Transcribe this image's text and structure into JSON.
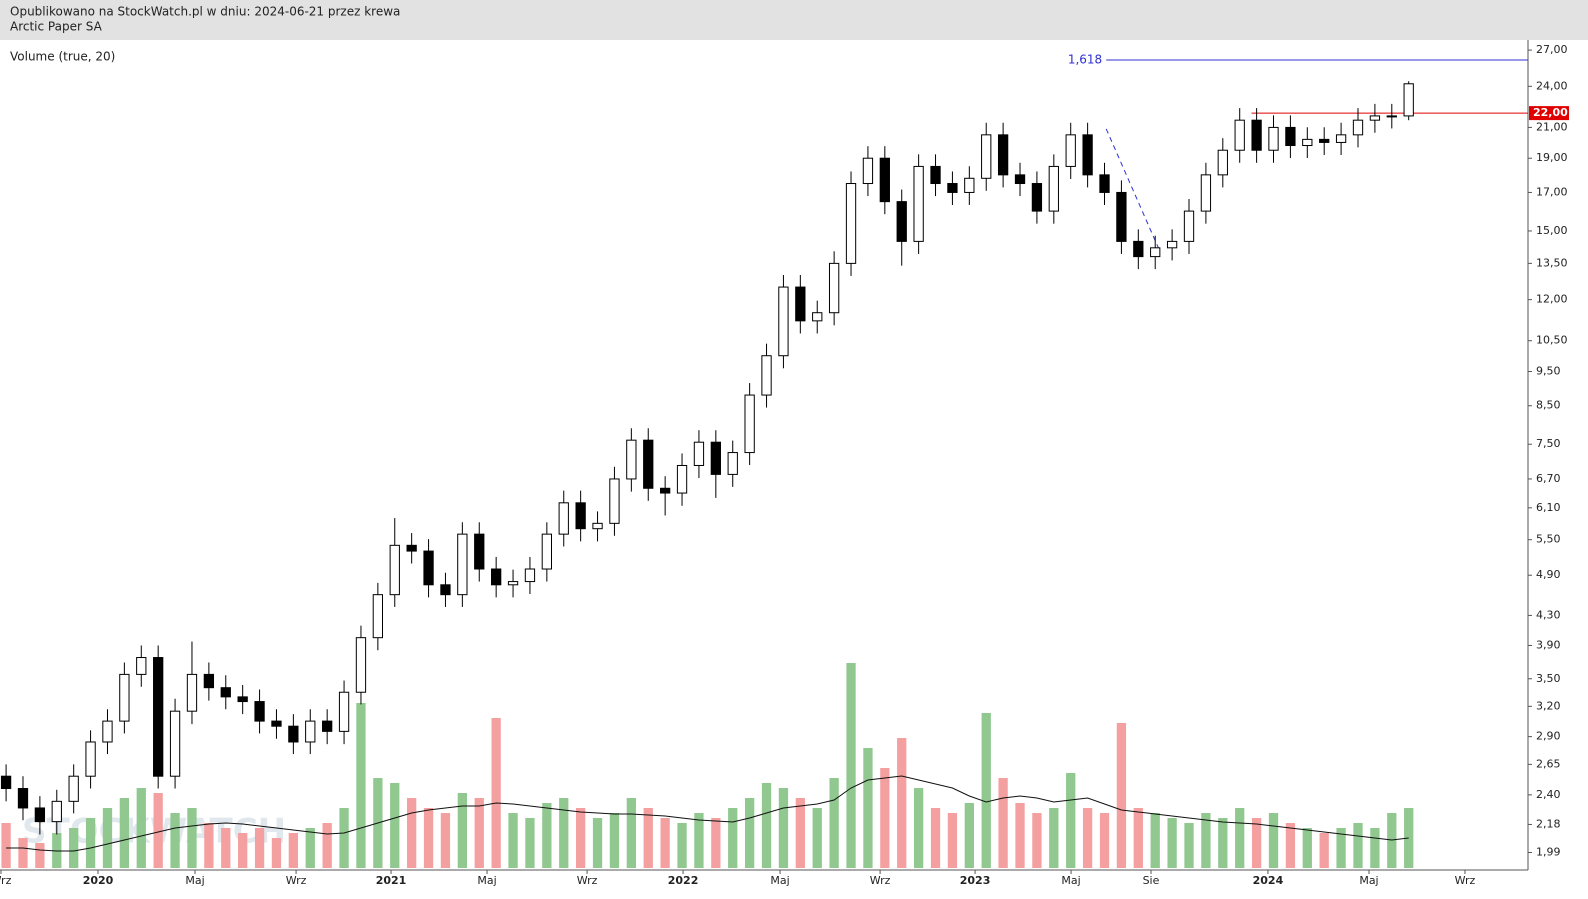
{
  "header": {
    "published": "Opublikowano na StockWatch.pl w dniu: 2024-06-21 przez krewa",
    "instrument": "Arctic Paper SA"
  },
  "chart_data": {
    "type": "candlestick",
    "indicator_label": "Volume (true, 20)",
    "watermark": "STOCKWATCH",
    "log_scale": true,
    "ylim": [
      1.88,
      27.9
    ],
    "yticks": [
      {
        "value": 1.99,
        "label": "1,99"
      },
      {
        "value": 2.18,
        "label": "2,18"
      },
      {
        "value": 2.4,
        "label": "2,40"
      },
      {
        "value": 2.65,
        "label": "2,65"
      },
      {
        "value": 2.9,
        "label": "2,90"
      },
      {
        "value": 3.2,
        "label": "3,20"
      },
      {
        "value": 3.5,
        "label": "3,50"
      },
      {
        "value": 3.9,
        "label": "3,90"
      },
      {
        "value": 4.3,
        "label": "4,30"
      },
      {
        "value": 4.9,
        "label": "4,90"
      },
      {
        "value": 5.5,
        "label": "5,50"
      },
      {
        "value": 6.1,
        "label": "6,10"
      },
      {
        "value": 6.7,
        "label": "6,70"
      },
      {
        "value": 7.5,
        "label": "7,50"
      },
      {
        "value": 8.5,
        "label": "8,50"
      },
      {
        "value": 9.5,
        "label": "9,50"
      },
      {
        "value": 10.5,
        "label": "10,50"
      },
      {
        "value": 12,
        "label": "12,00"
      },
      {
        "value": 13.5,
        "label": "13,50"
      },
      {
        "value": 15,
        "label": "15,00"
      },
      {
        "value": 17,
        "label": "17,00"
      },
      {
        "value": 19,
        "label": "19,00"
      },
      {
        "value": 21,
        "label": "21,00"
      },
      {
        "value": 24,
        "label": "24,00"
      },
      {
        "value": 27,
        "label": "27,00"
      }
    ],
    "xlim": [
      -0.36,
      90.06
    ],
    "xticks": [
      {
        "value": -0.3,
        "label": "Wrz"
      },
      {
        "value": 5.44,
        "label": "2020"
      },
      {
        "value": 11.18,
        "label": "Maj"
      },
      {
        "value": 17.16,
        "label": "Wrz"
      },
      {
        "value": 22.78,
        "label": "2021"
      },
      {
        "value": 28.46,
        "label": "Maj"
      },
      {
        "value": 34.38,
        "label": "Wrz"
      },
      {
        "value": 40.06,
        "label": "2022"
      },
      {
        "value": 45.8,
        "label": "Maj"
      },
      {
        "value": 51.72,
        "label": "Wrz"
      },
      {
        "value": 57.34,
        "label": "2023"
      },
      {
        "value": 63.02,
        "label": "Maj"
      },
      {
        "value": 67.75,
        "label": "Sie"
      },
      {
        "value": 74.67,
        "label": "2024"
      },
      {
        "value": 80.65,
        "label": "Maj"
      },
      {
        "value": 86.33,
        "label": "Wrz"
      }
    ],
    "open": [
      2.55,
      2.45,
      2.3,
      2.2,
      2.35,
      2.55,
      2.85,
      3.05,
      3.55,
      3.75,
      2.55,
      3.15,
      3.55,
      3.4,
      3.3,
      3.25,
      3.05,
      3.0,
      2.85,
      3.05,
      2.95,
      3.35,
      4.0,
      4.6,
      5.4,
      5.3,
      4.75,
      4.6,
      5.6,
      5.0,
      4.75,
      4.8,
      5.0,
      5.6,
      6.2,
      5.7,
      5.8,
      6.7,
      7.6,
      6.5,
      6.4,
      7.0,
      7.55,
      6.8,
      7.3,
      8.8,
      10.0,
      12.5,
      11.2,
      11.5,
      13.5,
      17.5,
      19.0,
      16.5,
      14.5,
      18.5,
      17.5,
      17.0,
      17.8,
      20.5,
      18.0,
      17.5,
      16.0,
      18.5,
      20.5,
      18.0,
      17.0,
      14.5,
      13.8,
      14.2,
      14.5,
      16.0,
      18.0,
      19.5,
      21.5,
      19.5,
      21.0,
      19.8,
      20.2,
      20.0,
      20.5,
      21.5,
      21.8,
      21.8
    ],
    "high": [
      2.65,
      2.55,
      2.39,
      2.44,
      2.65,
      2.96,
      3.17,
      3.69,
      3.9,
      3.9,
      3.28,
      3.95,
      3.69,
      3.54,
      3.43,
      3.38,
      3.17,
      3.12,
      3.17,
      3.17,
      3.48,
      4.16,
      4.78,
      5.9,
      5.62,
      5.51,
      4.94,
      5.82,
      5.82,
      5.2,
      4.99,
      5.2,
      5.82,
      6.45,
      6.45,
      6.03,
      6.97,
      7.9,
      7.9,
      6.76,
      7.28,
      7.85,
      7.85,
      7.59,
      9.15,
      10.4,
      13.0,
      13.0,
      11.96,
      14.04,
      18.2,
      19.76,
      19.76,
      17.16,
      19.24,
      19.24,
      18.2,
      18.51,
      21.32,
      21.32,
      18.72,
      18.2,
      19.24,
      21.32,
      21.32,
      18.72,
      17.68,
      15.08,
      14.77,
      15.08,
      16.64,
      18.72,
      20.28,
      22.36,
      22.36,
      21.84,
      21.84,
      21.01,
      21.01,
      21.32,
      22.36,
      22.67,
      22.67,
      24.4
    ],
    "low": [
      2.35,
      2.21,
      2.11,
      2.11,
      2.26,
      2.45,
      2.74,
      2.93,
      3.41,
      2.45,
      2.45,
      3.02,
      3.26,
      3.17,
      3.12,
      2.93,
      2.88,
      2.74,
      2.74,
      2.83,
      2.83,
      3.22,
      3.84,
      4.42,
      5.09,
      4.56,
      4.42,
      4.42,
      4.8,
      4.56,
      4.56,
      4.61,
      4.8,
      5.38,
      5.47,
      5.47,
      5.57,
      6.43,
      6.24,
      5.95,
      6.14,
      6.72,
      6.3,
      6.53,
      7.01,
      8.45,
      9.6,
      10.75,
      10.75,
      11.04,
      12.96,
      16.8,
      15.84,
      13.4,
      13.92,
      16.8,
      16.32,
      16.32,
      17.09,
      17.28,
      16.8,
      15.36,
      15.36,
      17.76,
      17.28,
      16.32,
      13.92,
      13.25,
      13.25,
      13.63,
      13.92,
      15.36,
      17.28,
      18.72,
      18.72,
      18.72,
      19.01,
      19.01,
      19.2,
      19.2,
      19.68,
      20.64,
      20.93,
      21.5
    ],
    "close": [
      2.45,
      2.3,
      2.2,
      2.35,
      2.55,
      2.85,
      3.05,
      3.55,
      3.75,
      2.55,
      3.15,
      3.55,
      3.4,
      3.3,
      3.25,
      3.05,
      3.0,
      2.85,
      3.05,
      2.95,
      3.35,
      4.0,
      4.6,
      5.4,
      5.3,
      4.75,
      4.6,
      5.6,
      5.0,
      4.75,
      4.8,
      5.0,
      5.6,
      6.2,
      5.7,
      5.8,
      6.7,
      7.6,
      6.5,
      6.4,
      7.0,
      7.55,
      6.8,
      7.3,
      8.8,
      10.0,
      12.5,
      11.2,
      11.5,
      13.5,
      17.5,
      19.0,
      16.5,
      14.5,
      18.5,
      17.5,
      17.0,
      17.8,
      20.5,
      18.0,
      17.5,
      16.0,
      18.5,
      20.5,
      18.0,
      17.0,
      14.5,
      13.8,
      14.2,
      14.5,
      16.0,
      18.0,
      19.5,
      21.5,
      19.5,
      21.0,
      19.8,
      20.2,
      20.0,
      20.5,
      21.5,
      21.8,
      21.8,
      24.2
    ],
    "vlim": [
      0,
      220
    ],
    "volume": [
      45,
      30,
      25,
      35,
      40,
      50,
      60,
      70,
      80,
      75,
      55,
      60,
      45,
      40,
      35,
      40,
      30,
      35,
      40,
      45,
      60,
      165,
      90,
      85,
      70,
      60,
      55,
      75,
      70,
      150,
      55,
      50,
      65,
      70,
      60,
      50,
      55,
      70,
      60,
      50,
      45,
      55,
      50,
      60,
      70,
      85,
      80,
      70,
      60,
      90,
      205,
      120,
      100,
      130,
      80,
      60,
      55,
      65,
      155,
      90,
      65,
      55,
      60,
      95,
      60,
      55,
      145,
      60,
      55,
      50,
      45,
      55,
      50,
      60,
      50,
      55,
      45,
      40,
      35,
      40,
      45,
      40,
      55,
      60
    ],
    "volume_ma": [
      20,
      20,
      18,
      17,
      17,
      20,
      24,
      28,
      32,
      36,
      40,
      42,
      44,
      45,
      44,
      42,
      40,
      38,
      36,
      34,
      35,
      40,
      45,
      50,
      55,
      58,
      60,
      62,
      62,
      65,
      64,
      62,
      60,
      58,
      56,
      55,
      54,
      54,
      53,
      52,
      50,
      48,
      47,
      46,
      50,
      55,
      60,
      62,
      64,
      68,
      80,
      88,
      90,
      92,
      88,
      84,
      80,
      72,
      66,
      70,
      72,
      70,
      66,
      68,
      70,
      64,
      58,
      56,
      54,
      52,
      50,
      48,
      46,
      45,
      44,
      42,
      40,
      38,
      36,
      34,
      32,
      30,
      28,
      30
    ],
    "up_color": "#90c890",
    "down_color": "#f4a0a0",
    "levels": [
      {
        "label": "1,618",
        "value": 26.14,
        "from": 65.1,
        "color": "#3030d0"
      },
      {
        "label": "22,00",
        "value": 22.0,
        "from": 73.7,
        "color": "#e00000"
      }
    ],
    "trend_line": {
      "x": [
        65.1,
        68.3
      ],
      "y": [
        20.9,
        14.0
      ],
      "color": "#3030d0"
    }
  }
}
